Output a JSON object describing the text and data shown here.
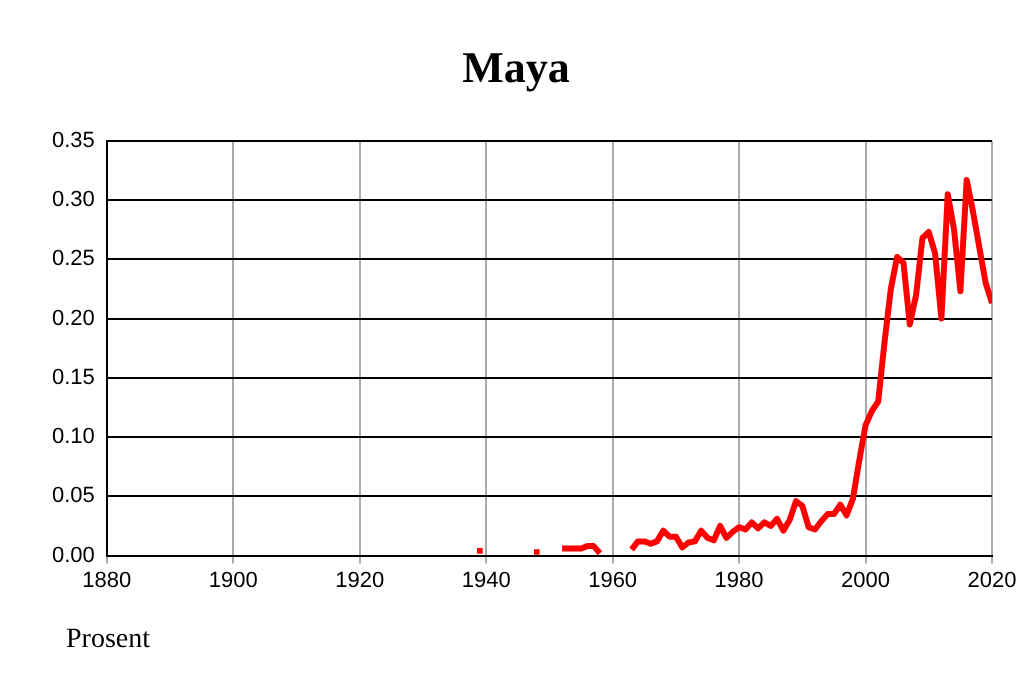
{
  "chart_data": {
    "type": "line",
    "title": "Maya",
    "ylabel": "Prosent",
    "x": [
      1952,
      1953,
      1954,
      1955,
      1956,
      1957,
      1958,
      1959,
      1962,
      1963,
      1964,
      1965,
      1966,
      1967,
      1968,
      1969,
      1970,
      1971,
      1972,
      1973,
      1974,
      1975,
      1976,
      1977,
      1978,
      1979,
      1980,
      1981,
      1982,
      1983,
      1984,
      1985,
      1986,
      1987,
      1988,
      1989,
      1990,
      1991,
      1992,
      1993,
      1994,
      1995,
      1996,
      1997,
      1998,
      1999,
      2000,
      2001,
      2002,
      2003,
      2004,
      2005,
      2006,
      2007,
      2008,
      2009,
      2010,
      2011,
      2012,
      2013,
      2014,
      2015,
      2016,
      2017,
      2018,
      2019,
      2020
    ],
    "series": [
      {
        "color": "#ff0000",
        "values": [
          0.006,
          0.006,
          0.006,
          0.006,
          0.008,
          0.008,
          0.002,
          null,
          null,
          0.005,
          0.012,
          0.012,
          0.01,
          0.012,
          0.021,
          0.016,
          0.016,
          0.007,
          0.011,
          0.012,
          0.021,
          0.015,
          0.013,
          0.025,
          0.015,
          0.02,
          0.024,
          0.022,
          0.028,
          0.023,
          0.028,
          0.025,
          0.031,
          0.021,
          0.03,
          0.046,
          0.042,
          0.024,
          0.022,
          0.029,
          0.035,
          0.035,
          0.043,
          0.034,
          0.048,
          0.08,
          0.11,
          0.122,
          0.13,
          0.18,
          0.225,
          0.252,
          0.247,
          0.195,
          0.22,
          0.268,
          0.273,
          0.255,
          0.2,
          0.305,
          0.275,
          0.223,
          0.317,
          0.29,
          0.26,
          0.23,
          0.213
        ]
      },
      {
        "type": "scatter",
        "marker": "square",
        "color": "#ff0000",
        "x": [
          1939,
          1948
        ],
        "values": [
          0.004,
          0.003
        ]
      }
    ],
    "xlim": [
      1880,
      2020
    ],
    "xticks": [
      1880,
      1900,
      1920,
      1940,
      1960,
      1980,
      2000,
      2020
    ],
    "ylim": [
      0,
      0.35
    ],
    "yticks": [
      {
        "value": 0,
        "label": "0.00"
      },
      0.05,
      {
        "value": 0.1,
        "label": "0.10"
      },
      0.15,
      {
        "value": 0.2,
        "label": "0.20"
      },
      0.25,
      {
        "value": 0.3,
        "label": "0.30"
      },
      0.35
    ],
    "grid": true,
    "legend": false,
    "marker": "none",
    "line_style": "solid"
  }
}
